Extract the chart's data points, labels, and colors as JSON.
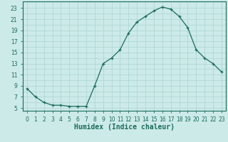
{
  "x": [
    0,
    1,
    2,
    3,
    4,
    5,
    6,
    7,
    8,
    9,
    10,
    11,
    12,
    13,
    14,
    15,
    16,
    17,
    18,
    19,
    20,
    21,
    22,
    23
  ],
  "y": [
    8.5,
    7.0,
    6.0,
    5.5,
    5.5,
    5.3,
    5.3,
    5.3,
    9.0,
    13.0,
    14.0,
    15.5,
    18.5,
    20.5,
    21.5,
    22.5,
    23.2,
    22.8,
    21.5,
    19.5,
    15.5,
    14.0,
    13.0,
    11.5
  ],
  "xlabel": "Humidex (Indice chaleur)",
  "line_color": "#1a6b5a",
  "marker": "+",
  "bg_color": "#cceae8",
  "grid_color": "#aad4d0",
  "xlim": [
    -0.5,
    23.5
  ],
  "ylim": [
    4.5,
    24.2
  ],
  "yticks": [
    5,
    7,
    9,
    11,
    13,
    15,
    17,
    19,
    21,
    23
  ],
  "xticks": [
    0,
    1,
    2,
    3,
    4,
    5,
    6,
    7,
    8,
    9,
    10,
    11,
    12,
    13,
    14,
    15,
    16,
    17,
    18,
    19,
    20,
    21,
    22,
    23
  ],
  "tick_fontsize": 5.5,
  "xlabel_fontsize": 7.0
}
